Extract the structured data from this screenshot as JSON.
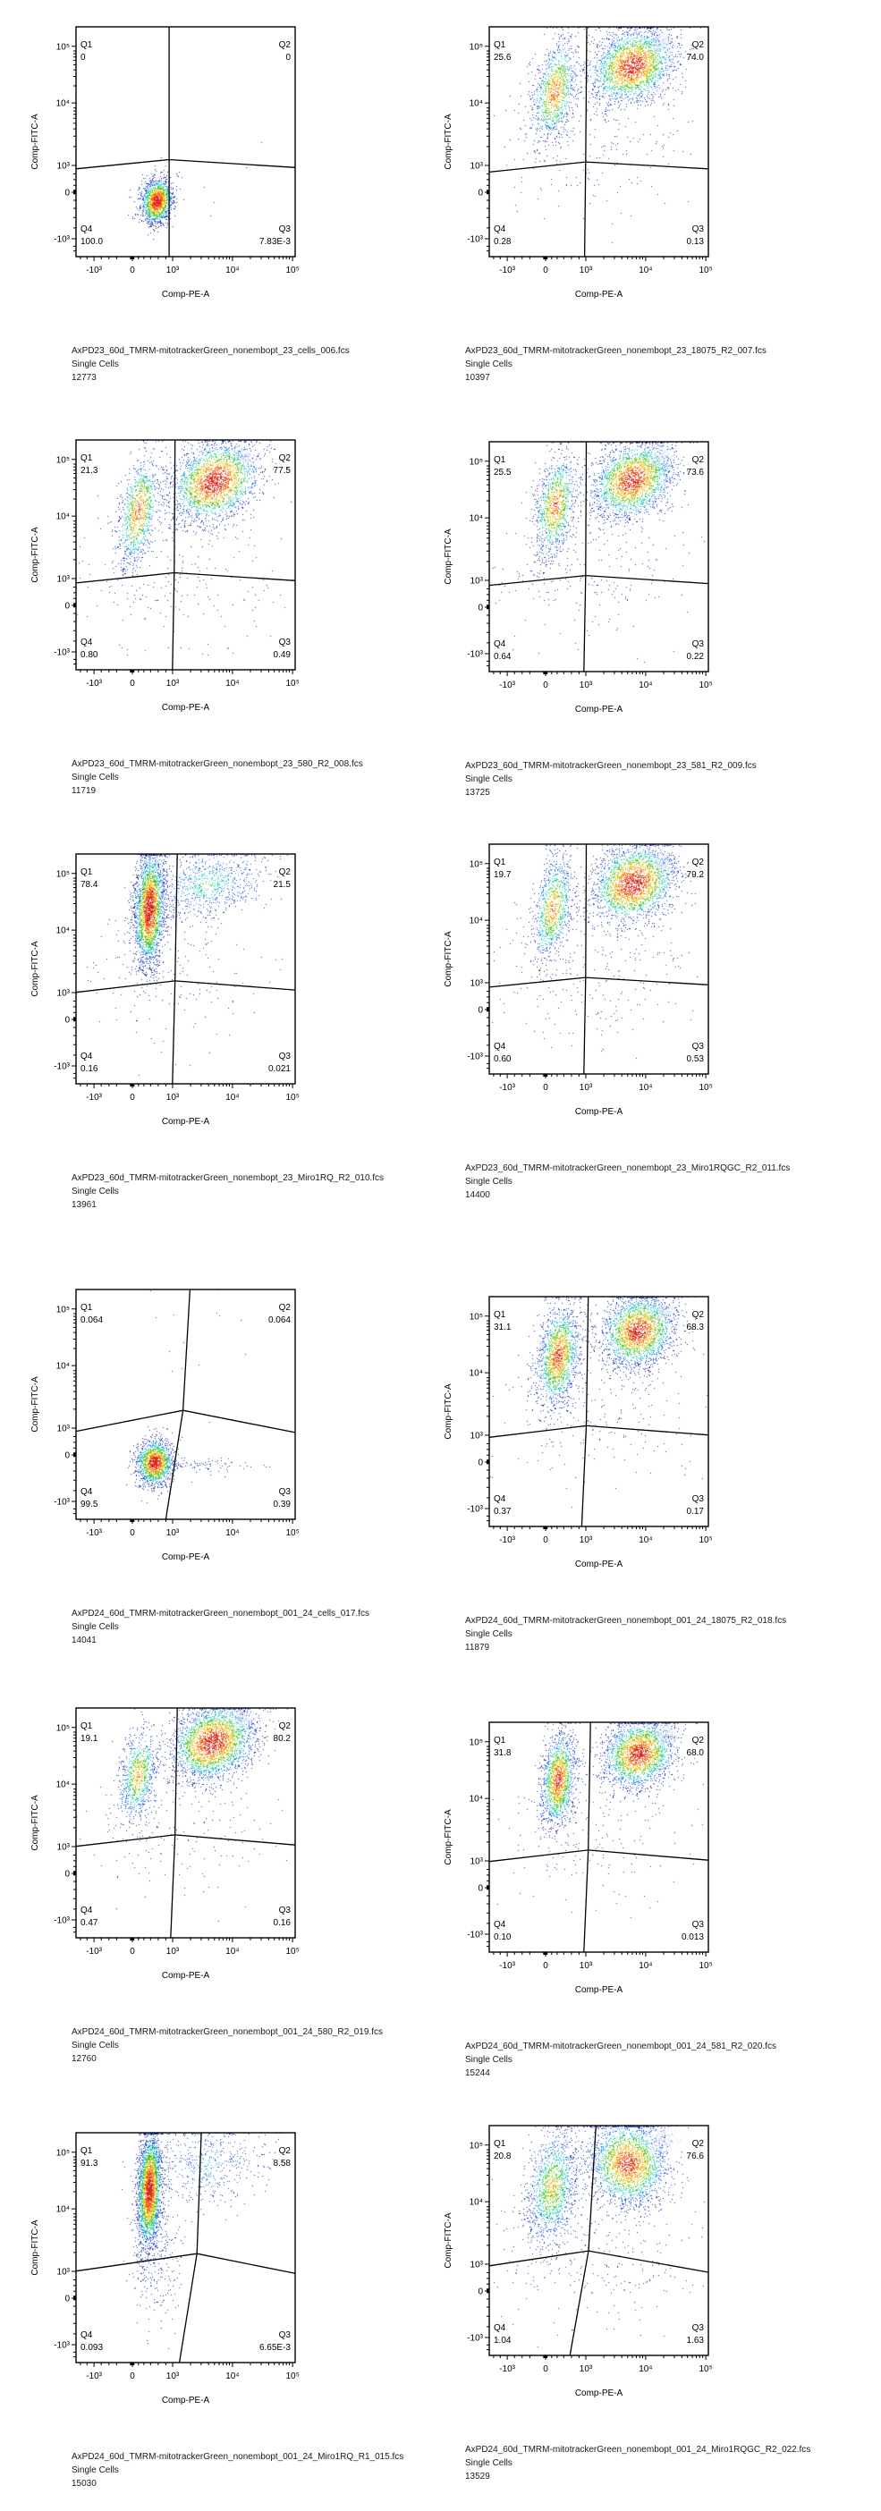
{
  "axes": {
    "x_label": "Comp-PE-A",
    "y_label": "Comp-FITC-A",
    "x_ticks": [
      "-10³",
      "0",
      "10³",
      "10⁴",
      "10⁵"
    ],
    "y_ticks": [
      "10⁵",
      "10⁴",
      "10³",
      "0",
      "-10³"
    ]
  },
  "quadrant_names": [
    "Q1",
    "Q2",
    "Q3",
    "Q4"
  ],
  "chart_data": [
    {
      "type": "scatter-density",
      "filename": "AxPD23_60d_TMRM-mitotrackerGreen_nonembopt_23_cells_006.fcs",
      "population": "Single Cells",
      "cell_count": "12773",
      "xlabel": "Comp-PE-A",
      "ylabel": "Comp-FITC-A",
      "quadrants": {
        "Q1": "0",
        "Q2": "0",
        "Q3": "7.83E-3",
        "Q4": "100.0"
      }
    },
    {
      "type": "scatter-density",
      "filename": "AxPD23_60d_TMRM-mitotrackerGreen_nonembopt_23_18075_R2_007.fcs",
      "population": "Single Cells",
      "cell_count": "10397",
      "xlabel": "Comp-PE-A",
      "ylabel": "Comp-FITC-A",
      "quadrants": {
        "Q1": "25.6",
        "Q2": "74.0",
        "Q3": "0.13",
        "Q4": "0.28"
      }
    },
    {
      "type": "scatter-density",
      "filename": "AxPD23_60d_TMRM-mitotrackerGreen_nonembopt_23_580_R2_008.fcs",
      "population": "Single Cells",
      "cell_count": "11719",
      "xlabel": "Comp-PE-A",
      "ylabel": "Comp-FITC-A",
      "quadrants": {
        "Q1": "21.3",
        "Q2": "77.5",
        "Q3": "0.49",
        "Q4": "0.80"
      }
    },
    {
      "type": "scatter-density",
      "filename": "AxPD23_60d_TMRM-mitotrackerGreen_nonembopt_23_581_R2_009.fcs",
      "population": "Single Cells",
      "cell_count": "13725",
      "xlabel": "Comp-PE-A",
      "ylabel": "Comp-FITC-A",
      "quadrants": {
        "Q1": "25.5",
        "Q2": "73.6",
        "Q3": "0.22",
        "Q4": "0.64"
      }
    },
    {
      "type": "scatter-density",
      "filename": "AxPD23_60d_TMRM-mitotrackerGreen_nonembopt_23_Miro1RQ_R2_010.fcs",
      "population": "Single Cells",
      "cell_count": "13961",
      "xlabel": "Comp-PE-A",
      "ylabel": "Comp-FITC-A",
      "quadrants": {
        "Q1": "78.4",
        "Q2": "21.5",
        "Q3": "0.021",
        "Q4": "0.16"
      }
    },
    {
      "type": "scatter-density",
      "filename": "AxPD23_60d_TMRM-mitotrackerGreen_nonembopt_23_Miro1RQGC_R2_011.fcs",
      "population": "Single Cells",
      "cell_count": "14400",
      "xlabel": "Comp-PE-A",
      "ylabel": "Comp-FITC-A",
      "quadrants": {
        "Q1": "19.7",
        "Q2": "79.2",
        "Q3": "0.53",
        "Q4": "0.60"
      }
    },
    {
      "type": "scatter-density",
      "filename": "AxPD24_60d_TMRM-mitotrackerGreen_nonembopt_001_24_cells_017.fcs",
      "population": "Single Cells",
      "cell_count": "14041",
      "xlabel": "Comp-PE-A",
      "ylabel": "Comp-FITC-A",
      "quadrants": {
        "Q1": "0.064",
        "Q2": "0.064",
        "Q3": "0.39",
        "Q4": "99.5"
      }
    },
    {
      "type": "scatter-density",
      "filename": "AxPD24_60d_TMRM-mitotrackerGreen_nonembopt_001_24_18075_R2_018.fcs",
      "population": "Single Cells",
      "cell_count": "11879",
      "xlabel": "Comp-PE-A",
      "ylabel": "Comp-FITC-A",
      "quadrants": {
        "Q1": "31.1",
        "Q2": "68.3",
        "Q3": "0.17",
        "Q4": "0.37"
      }
    },
    {
      "type": "scatter-density",
      "filename": "AxPD24_60d_TMRM-mitotrackerGreen_nonembopt_001_24_580_R2_019.fcs",
      "population": "Single Cells",
      "cell_count": "12760",
      "xlabel": "Comp-PE-A",
      "ylabel": "Comp-FITC-A",
      "quadrants": {
        "Q1": "19.1",
        "Q2": "80.2",
        "Q3": "0.16",
        "Q4": "0.47"
      }
    },
    {
      "type": "scatter-density",
      "filename": "AxPD24_60d_TMRM-mitotrackerGreen_nonembopt_001_24_581_R2_020.fcs",
      "population": "Single Cells",
      "cell_count": "15244",
      "xlabel": "Comp-PE-A",
      "ylabel": "Comp-FITC-A",
      "quadrants": {
        "Q1": "31.8",
        "Q2": "68.0",
        "Q3": "0.013",
        "Q4": "0.10"
      }
    },
    {
      "type": "scatter-density",
      "filename": "AxPD24_60d_TMRM-mitotrackerGreen_nonembopt_001_24_Miro1RQ_R1_015.fcs",
      "population": "Single Cells",
      "cell_count": "15030",
      "xlabel": "Comp-PE-A",
      "ylabel": "Comp-FITC-A",
      "quadrants": {
        "Q1": "91.3",
        "Q2": "8.58",
        "Q3": "6.65E-3",
        "Q4": "0.093"
      }
    },
    {
      "type": "scatter-density",
      "filename": "AxPD24_60d_TMRM-mitotrackerGreen_nonembopt_001_24_Miro1RQGC_R2_022.fcs",
      "population": "Single Cells",
      "cell_count": "13529",
      "xlabel": "Comp-PE-A",
      "ylabel": "Comp-FITC-A",
      "quadrants": {
        "Q1": "20.8",
        "Q2": "76.6",
        "Q3": "1.63",
        "Q4": "1.04"
      }
    }
  ]
}
